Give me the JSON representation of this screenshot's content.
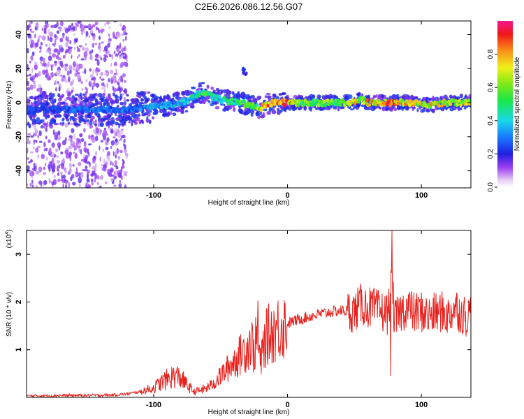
{
  "title": "C2E6.2026.086.12.56.G07",
  "chart_data": [
    {
      "type": "heatmap",
      "xlabel": "Height of straight line (km)",
      "ylabel": "Frequency (Hz)",
      "xlim": [
        -195,
        137
      ],
      "ylim": [
        -50,
        48
      ],
      "xticks": [
        -100,
        0,
        100
      ],
      "xtick_labels": [
        "-100",
        "0",
        "100"
      ],
      "yticks": [
        -40,
        -20,
        0,
        20,
        40
      ],
      "ytick_labels": [
        "-40",
        "-20",
        "0",
        "20",
        "40"
      ],
      "colorbar": {
        "label": "Normalized spectral amplitude",
        "range": [
          0,
          1
        ],
        "ticks": [
          0.0,
          0.2,
          0.4,
          0.6,
          0.8
        ],
        "tick_labels": [
          "0.0",
          "0.2",
          "0.4",
          "0.6",
          "0.8"
        ]
      },
      "ridge": {
        "x": [
          -195,
          -180,
          -160,
          -140,
          -120,
          -100,
          -85,
          -75,
          -65,
          -60,
          -55,
          -45,
          -35,
          -25,
          -20,
          -15,
          -10,
          -5,
          0,
          10,
          20,
          30,
          40,
          50,
          55,
          60,
          70,
          80,
          90,
          100,
          110,
          120,
          130,
          137
        ],
        "freq": [
          -5,
          -4,
          -4,
          -4,
          -4,
          -2,
          -1,
          1,
          6,
          6,
          3,
          1,
          0,
          -2,
          -3,
          -1,
          0,
          0,
          0,
          0,
          0,
          0,
          0,
          0,
          2,
          0,
          0,
          0,
          0,
          -1,
          -1,
          0,
          0,
          0
        ],
        "amplitude": [
          0.25,
          0.25,
          0.3,
          0.3,
          0.3,
          0.35,
          0.4,
          0.45,
          0.5,
          0.55,
          0.45,
          0.5,
          0.55,
          0.6,
          0.7,
          0.9,
          0.95,
          0.95,
          0.9,
          0.6,
          0.6,
          0.65,
          0.6,
          0.8,
          0.65,
          0.85,
          0.8,
          0.9,
          0.75,
          0.75,
          0.8,
          0.7,
          0.7,
          0.7
        ]
      },
      "secondary_feature": {
        "x": -32,
        "freq": 18
      }
    },
    {
      "type": "line",
      "xlabel": "Height of straight line (km)",
      "ylabel": "SNR (10 * v/v)",
      "y_multiplier": "(x10",
      "y_multiplier_exp": "4",
      "y_multiplier_close": ")",
      "xlim": [
        -195,
        137
      ],
      "ylim": [
        0,
        3.5
      ],
      "xticks": [
        -100,
        0,
        100
      ],
      "xtick_labels": [
        "-100",
        "0",
        "100"
      ],
      "yticks": [
        1,
        2,
        3
      ],
      "ytick_labels": [
        "1",
        "2",
        "3"
      ],
      "color": "#e8201c",
      "series": [
        {
          "name": "SNR",
          "x": [
            -195,
            -170,
            -150,
            -130,
            -120,
            -110,
            -100,
            -95,
            -90,
            -85,
            -80,
            -75,
            -70,
            -65,
            -60,
            -55,
            -50,
            -45,
            -40,
            -35,
            -30,
            -27,
            -25,
            -23,
            -20,
            -18,
            -15,
            -10,
            -5,
            0,
            10,
            20,
            30,
            40,
            50,
            55,
            60,
            65,
            70,
            75,
            78,
            80,
            85,
            90,
            95,
            100,
            105,
            110,
            115,
            120,
            125,
            130,
            135,
            137
          ],
          "y": [
            0.03,
            0.04,
            0.04,
            0.05,
            0.07,
            0.12,
            0.2,
            0.3,
            0.38,
            0.45,
            0.42,
            0.25,
            0.12,
            0.15,
            0.2,
            0.3,
            0.45,
            0.6,
            0.75,
            0.9,
            1.05,
            1.2,
            0.9,
            1.3,
            0.7,
            1.1,
            1.3,
            1.4,
            1.5,
            1.55,
            1.65,
            1.72,
            1.78,
            1.82,
            1.8,
            1.95,
            1.9,
            1.85,
            1.8,
            1.75,
            2.4,
            1.6,
            1.8,
            1.9,
            1.75,
            1.8,
            1.7,
            1.75,
            1.8,
            1.7,
            1.9,
            1.75,
            1.7,
            1.8
          ]
        }
      ],
      "peaks": [
        {
          "x": -22,
          "y": 2.03
        },
        {
          "x": 78,
          "y": 3.5
        },
        {
          "x": 77,
          "y": 0.45
        }
      ]
    }
  ]
}
